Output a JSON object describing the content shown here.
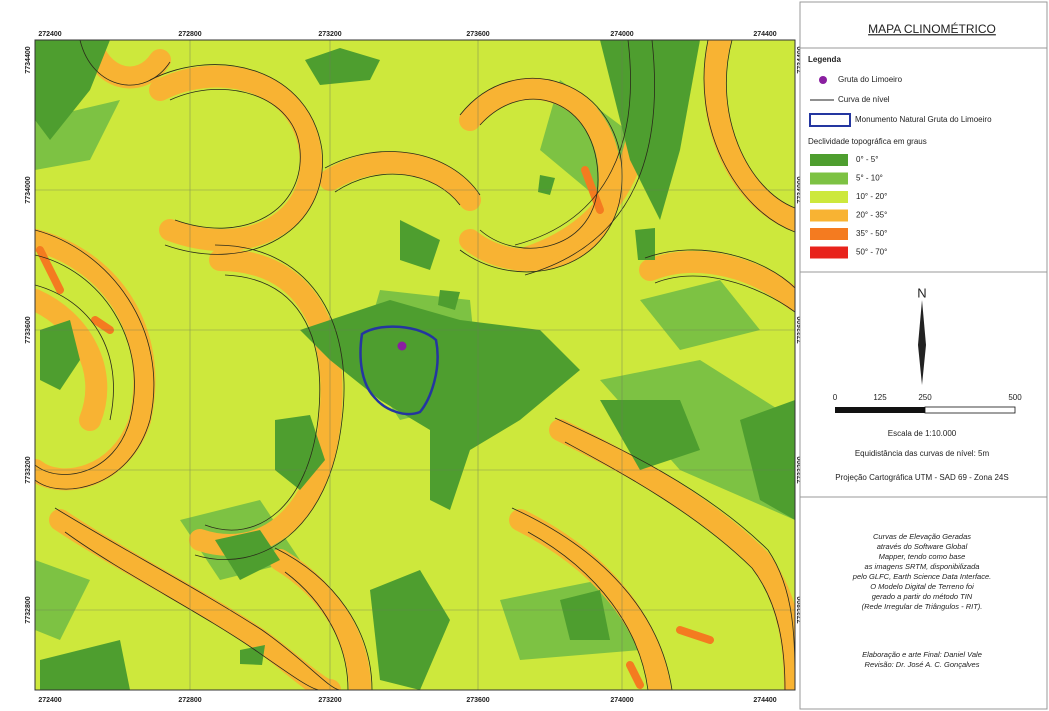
{
  "map": {
    "top_labels": [
      "272400",
      "272800",
      "273200",
      "273600",
      "274000",
      "274400"
    ],
    "bottom_labels": [
      "272400",
      "272800",
      "273200",
      "273600",
      "274000",
      "274400"
    ],
    "left_labels": [
      "7734400",
      "7734000",
      "7733600",
      "7733200",
      "7732800"
    ],
    "right_labels": [
      "7734400",
      "7734000",
      "7733600",
      "7733200",
      "7732800"
    ]
  },
  "panel": {
    "title": "MAPA CLINOMÉTRICO",
    "legend_title": "Legenda",
    "cave": "Gruta do Limoeiro",
    "contour": "Curva de nível",
    "monument": "Monumento Natural Gruta do Limoeiro",
    "slope_title": "Declividade topográfica em graus",
    "classes": [
      {
        "label": "0° - 5°",
        "color": "#4e9e2f"
      },
      {
        "label": "5° - 10°",
        "color": "#7dc243"
      },
      {
        "label": "10° - 20°",
        "color": "#cde83c"
      },
      {
        "label": "20° - 35°",
        "color": "#f8b333"
      },
      {
        "label": "35° - 50°",
        "color": "#f47b20"
      },
      {
        "label": "50° - 70°",
        "color": "#e8231c"
      }
    ],
    "north": "N",
    "scale_labels": [
      "0",
      "125",
      "250",
      "500"
    ],
    "scale_text": "Escala de 1:10.000",
    "equidistance": "Equidistância das curvas de nível: 5m",
    "projection": "Projeção Cartográfica UTM - SAD 69 - Zona 24S",
    "notes": [
      "Curvas de Elevação Geradas",
      "através do Software Global",
      "Mapper, tendo como base",
      "as imagens SRTM, disponibilizada",
      "pelo GLFC, Earth Science Data Interface.",
      "O Modelo Digital de Terreno foi",
      "gerado a partir do método TIN",
      "(Rede Irregular de Triângulos - RIT)."
    ],
    "credits": [
      "Elaboração e arte Final: Daniel Vale",
      "Revisão: Dr. José A. C. Gonçalves"
    ]
  }
}
